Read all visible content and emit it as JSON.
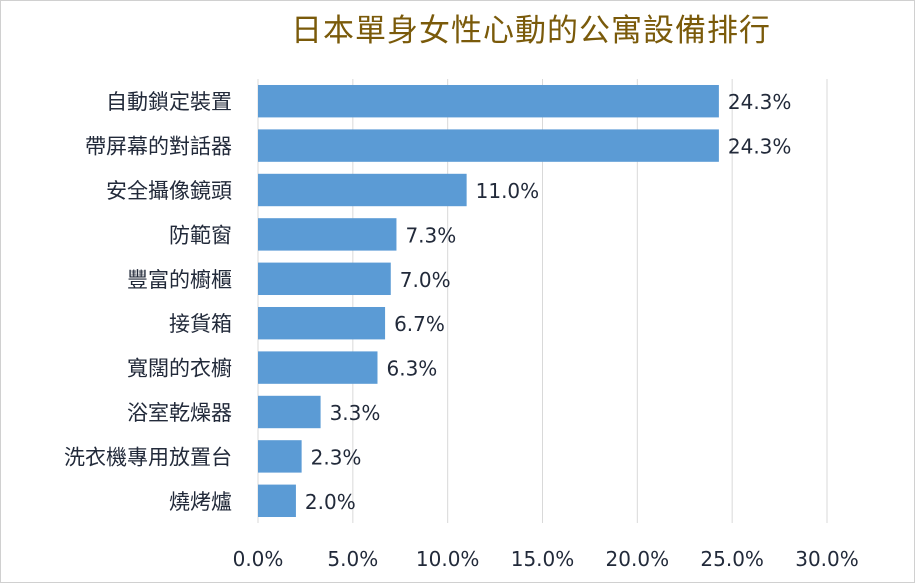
{
  "chart_data": {
    "type": "bar",
    "orientation": "horizontal",
    "title": "日本單身女性心動的公寓設備排行",
    "categories": [
      "自動鎖定裝置",
      "帶屏幕的對話器",
      "安全攝像鏡頭",
      "防範窗",
      "豐富的櫥櫃",
      "接貨箱",
      "寬闊的衣櫥",
      "浴室乾燥器",
      "洗衣機專用放置台",
      "燒烤爐"
    ],
    "values": [
      24.3,
      24.3,
      11.0,
      7.3,
      7.0,
      6.7,
      6.3,
      3.3,
      2.3,
      2.0
    ],
    "value_labels": [
      "24.3%",
      "24.3%",
      "11.0%",
      "7.3%",
      "7.0%",
      "6.7%",
      "6.3%",
      "3.3%",
      "2.3%",
      "2.0%"
    ],
    "xlim": [
      0,
      30
    ],
    "xticks": [
      "0.0%",
      "5.0%",
      "10.0%",
      "15.0%",
      "20.0%",
      "25.0%",
      "30.0%"
    ],
    "xlabel": "",
    "ylabel": "",
    "grid": "vertical",
    "legend": "none",
    "bar_color": "#5b9bd5",
    "title_color": "#7a5a0a"
  }
}
